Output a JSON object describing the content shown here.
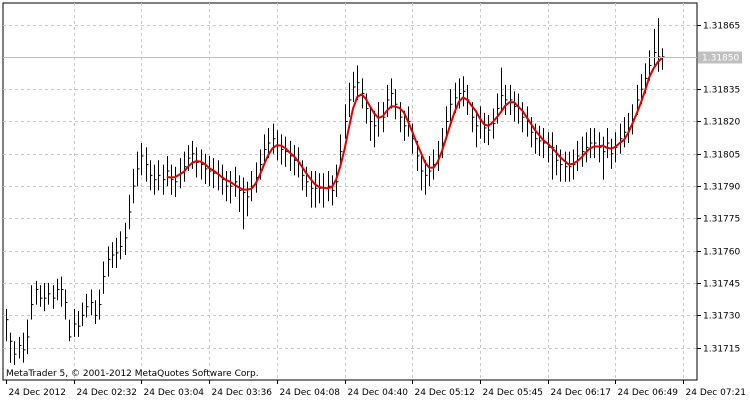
{
  "app": {
    "copyright": "MetaTrader 5, © 2001-2012 MetaQuotes Software Corp."
  },
  "colors": {
    "background": "#ffffff",
    "grid": "#c8c8c8",
    "bars": "#000000",
    "moving_average": "#e00000",
    "price_line": "#c0c0c0",
    "price_tag": "#c0c0c0"
  },
  "chart_data": {
    "type": "bar",
    "symbol_price": "1.31850",
    "current_price": 1.3185,
    "ylim": [
      1.317,
      1.31875
    ],
    "y_ticks": [
      {
        "value": 1.31715,
        "label": "1.31715"
      },
      {
        "value": 1.3173,
        "label": "1.31730"
      },
      {
        "value": 1.31745,
        "label": "1.31745"
      },
      {
        "value": 1.3176,
        "label": "1.31760"
      },
      {
        "value": 1.31775,
        "label": "1.31775"
      },
      {
        "value": 1.3179,
        "label": "1.31790"
      },
      {
        "value": 1.31805,
        "label": "1.31805"
      },
      {
        "value": 1.3182,
        "label": "1.31820"
      },
      {
        "value": 1.31835,
        "label": "1.31835"
      },
      {
        "value": 1.31865,
        "label": "1.31865"
      }
    ],
    "x_ticks": [
      "24 Dec 2012",
      "24 Dec 02:32",
      "24 Dec 03:04",
      "24 Dec 03:36",
      "24 Dec 04:08",
      "24 Dec 04:40",
      "24 Dec 05:12",
      "24 Dec 05:45",
      "24 Dec 06:17",
      "24 Dec 06:49",
      "24 Dec 07:21"
    ],
    "bars_per_tick": 16,
    "moving_average_start": 38,
    "closes": [
      1.31728,
      1.31718,
      1.31712,
      1.31716,
      1.31714,
      1.3172,
      1.31735,
      1.31742,
      1.31738,
      1.31738,
      1.3174,
      1.31738,
      1.31742,
      1.31742,
      1.31736,
      1.3172,
      1.31726,
      1.31725,
      1.3173,
      1.31734,
      1.31736,
      1.3173,
      1.31735,
      1.31748,
      1.31756,
      1.31758,
      1.31759,
      1.31762,
      1.31766,
      1.31778,
      1.3179,
      1.31798,
      1.31804,
      1.318,
      1.31795,
      1.31793,
      1.31795,
      1.31793,
      1.31797,
      1.31793,
      1.31792,
      1.31796,
      1.31799,
      1.31803,
      1.31805,
      1.31801,
      1.318,
      1.31798,
      1.31797,
      1.31796,
      1.31795,
      1.31793,
      1.3179,
      1.3179,
      1.31792,
      1.31788,
      1.31787,
      1.31785,
      1.3179,
      1.31794,
      1.318,
      1.31807,
      1.3181,
      1.31812,
      1.31809,
      1.31807,
      1.31806,
      1.31804,
      1.31802,
      1.31801,
      1.31795,
      1.31792,
      1.31789,
      1.31789,
      1.31789,
      1.31789,
      1.3179,
      1.31788,
      1.31792,
      1.31806,
      1.3182,
      1.3183,
      1.31836,
      1.31838,
      1.31833,
      1.31826,
      1.3182,
      1.31818,
      1.31822,
      1.31822,
      1.3183,
      1.31833,
      1.31828,
      1.31822,
      1.31818,
      1.3182,
      1.31812,
      1.31804,
      1.31797,
      1.31795,
      1.31797,
      1.318,
      1.31804,
      1.3181,
      1.3182,
      1.31828,
      1.31831,
      1.31833,
      1.31834,
      1.3183,
      1.31822,
      1.31818,
      1.3182,
      1.31817,
      1.31816,
      1.31819,
      1.31826,
      1.31832,
      1.3183,
      1.3183,
      1.31827,
      1.31826,
      1.31822,
      1.3182,
      1.31815,
      1.31812,
      1.31811,
      1.3181,
      1.31808,
      1.31808,
      1.31802,
      1.318,
      1.31799,
      1.31799,
      1.318,
      1.31804,
      1.31806,
      1.31808,
      1.3181,
      1.3181,
      1.31808,
      1.31806,
      1.3181,
      1.31805,
      1.31808,
      1.31812,
      1.31815,
      1.31817,
      1.31821,
      1.3183,
      1.31835,
      1.3184,
      1.31846,
      1.31852,
      1.3185,
      1.3185
    ],
    "ranges": [
      [
        1.31733,
        1.31718
      ],
      [
        1.31722,
        1.31708
      ],
      [
        1.31718,
        1.31707
      ],
      [
        1.3172,
        1.3171
      ],
      [
        1.31722,
        1.31708
      ],
      [
        1.31728,
        1.31712
      ],
      [
        1.31744,
        1.31728
      ],
      [
        1.31746,
        1.31735
      ],
      [
        1.31744,
        1.31734
      ],
      [
        1.31745,
        1.31732
      ],
      [
        1.31745,
        1.31735
      ],
      [
        1.31744,
        1.31733
      ],
      [
        1.31747,
        1.31737
      ],
      [
        1.31748,
        1.31734
      ],
      [
        1.31742,
        1.31728
      ],
      [
        1.31728,
        1.31718
      ],
      [
        1.31733,
        1.3172
      ],
      [
        1.31732,
        1.3172
      ],
      [
        1.31736,
        1.31725
      ],
      [
        1.3174,
        1.31729
      ],
      [
        1.31742,
        1.3173
      ],
      [
        1.31737,
        1.31726
      ],
      [
        1.31742,
        1.31728
      ],
      [
        1.31755,
        1.3174
      ],
      [
        1.31762,
        1.31748
      ],
      [
        1.31764,
        1.31752
      ],
      [
        1.31766,
        1.31752
      ],
      [
        1.31769,
        1.31756
      ],
      [
        1.31773,
        1.31758
      ],
      [
        1.31786,
        1.3177
      ],
      [
        1.31798,
        1.31782
      ],
      [
        1.31806,
        1.3179
      ],
      [
        1.3181,
        1.31795
      ],
      [
        1.31808,
        1.31792
      ],
      [
        1.31802,
        1.31788
      ],
      [
        1.318,
        1.31786
      ],
      [
        1.31802,
        1.31788
      ],
      [
        1.318,
        1.31786
      ],
      [
        1.31804,
        1.3179
      ],
      [
        1.318,
        1.31786
      ],
      [
        1.31799,
        1.31785
      ],
      [
        1.31803,
        1.31789
      ],
      [
        1.31806,
        1.31792
      ],
      [
        1.31809,
        1.31797
      ],
      [
        1.31811,
        1.31798
      ],
      [
        1.31808,
        1.31794
      ],
      [
        1.31807,
        1.31793
      ],
      [
        1.31805,
        1.31791
      ],
      [
        1.31804,
        1.3179
      ],
      [
        1.31803,
        1.31789
      ],
      [
        1.31802,
        1.31788
      ],
      [
        1.318,
        1.31786
      ],
      [
        1.31797,
        1.31783
      ],
      [
        1.31797,
        1.31782
      ],
      [
        1.31799,
        1.31785
      ],
      [
        1.31795,
        1.31778
      ],
      [
        1.31794,
        1.3177
      ],
      [
        1.31792,
        1.31776
      ],
      [
        1.31797,
        1.31783
      ],
      [
        1.31801,
        1.31787
      ],
      [
        1.31807,
        1.31793
      ],
      [
        1.31814,
        1.318
      ],
      [
        1.31817,
        1.31803
      ],
      [
        1.31819,
        1.31805
      ],
      [
        1.31816,
        1.31802
      ],
      [
        1.31814,
        1.318
      ],
      [
        1.31813,
        1.31799
      ],
      [
        1.31811,
        1.31797
      ],
      [
        1.31809,
        1.31795
      ],
      [
        1.31808,
        1.31794
      ],
      [
        1.31802,
        1.31788
      ],
      [
        1.31799,
        1.31785
      ],
      [
        1.31797,
        1.3178
      ],
      [
        1.31797,
        1.3178
      ],
      [
        1.31796,
        1.31782
      ],
      [
        1.31796,
        1.3178
      ],
      [
        1.31797,
        1.31783
      ],
      [
        1.31795,
        1.31781
      ],
      [
        1.318,
        1.31785
      ],
      [
        1.31814,
        1.31799
      ],
      [
        1.31828,
        1.31812
      ],
      [
        1.31838,
        1.31822
      ],
      [
        1.31843,
        1.31829
      ],
      [
        1.31846,
        1.3183
      ],
      [
        1.3184,
        1.31826
      ],
      [
        1.31833,
        1.31819
      ],
      [
        1.31827,
        1.31811
      ],
      [
        1.31825,
        1.31808
      ],
      [
        1.31829,
        1.31813
      ],
      [
        1.31829,
        1.31815
      ],
      [
        1.31837,
        1.31822
      ],
      [
        1.3184,
        1.31826
      ],
      [
        1.31835,
        1.31821
      ],
      [
        1.31829,
        1.31815
      ],
      [
        1.31825,
        1.31811
      ],
      [
        1.31827,
        1.31813
      ],
      [
        1.31819,
        1.31805
      ],
      [
        1.31811,
        1.31797
      ],
      [
        1.31804,
        1.31788
      ],
      [
        1.31802,
        1.31786
      ],
      [
        1.31804,
        1.3179
      ],
      [
        1.31807,
        1.31793
      ],
      [
        1.31811,
        1.31797
      ],
      [
        1.31817,
        1.31803
      ],
      [
        1.31827,
        1.31813
      ],
      [
        1.31835,
        1.3182
      ],
      [
        1.31838,
        1.31824
      ],
      [
        1.3184,
        1.31826
      ],
      [
        1.31841,
        1.31827
      ],
      [
        1.31837,
        1.31823
      ],
      [
        1.31829,
        1.31815
      ],
      [
        1.31825,
        1.31808
      ],
      [
        1.31827,
        1.31812
      ],
      [
        1.31824,
        1.3181
      ],
      [
        1.31823,
        1.31809
      ],
      [
        1.31826,
        1.31812
      ],
      [
        1.31833,
        1.31819
      ],
      [
        1.31845,
        1.31825
      ],
      [
        1.31837,
        1.31823
      ],
      [
        1.31837,
        1.31823
      ],
      [
        1.31834,
        1.3182
      ],
      [
        1.31833,
        1.31819
      ],
      [
        1.31829,
        1.31815
      ],
      [
        1.31827,
        1.31813
      ],
      [
        1.31822,
        1.31808
      ],
      [
        1.31819,
        1.31805
      ],
      [
        1.31818,
        1.31804
      ],
      [
        1.31817,
        1.31803
      ],
      [
        1.31815,
        1.31801
      ],
      [
        1.31815,
        1.31793
      ],
      [
        1.31809,
        1.31795
      ],
      [
        1.31807,
        1.31792
      ],
      [
        1.31806,
        1.31792
      ],
      [
        1.31806,
        1.31792
      ],
      [
        1.31807,
        1.31793
      ],
      [
        1.31811,
        1.31797
      ],
      [
        1.31813,
        1.31799
      ],
      [
        1.31815,
        1.31801
      ],
      [
        1.31817,
        1.31803
      ],
      [
        1.31817,
        1.31803
      ],
      [
        1.31815,
        1.31801
      ],
      [
        1.31813,
        1.31793
      ],
      [
        1.31817,
        1.31803
      ],
      [
        1.31812,
        1.31798
      ],
      [
        1.31815,
        1.31801
      ],
      [
        1.31819,
        1.31805
      ],
      [
        1.31822,
        1.31808
      ],
      [
        1.31824,
        1.3181
      ],
      [
        1.31828,
        1.31814
      ],
      [
        1.31837,
        1.31823
      ],
      [
        1.31842,
        1.31828
      ],
      [
        1.31847,
        1.31833
      ],
      [
        1.31853,
        1.31839
      ],
      [
        1.31863,
        1.31845
      ],
      [
        1.31868,
        1.31843
      ],
      [
        1.31854,
        1.31844
      ]
    ]
  }
}
